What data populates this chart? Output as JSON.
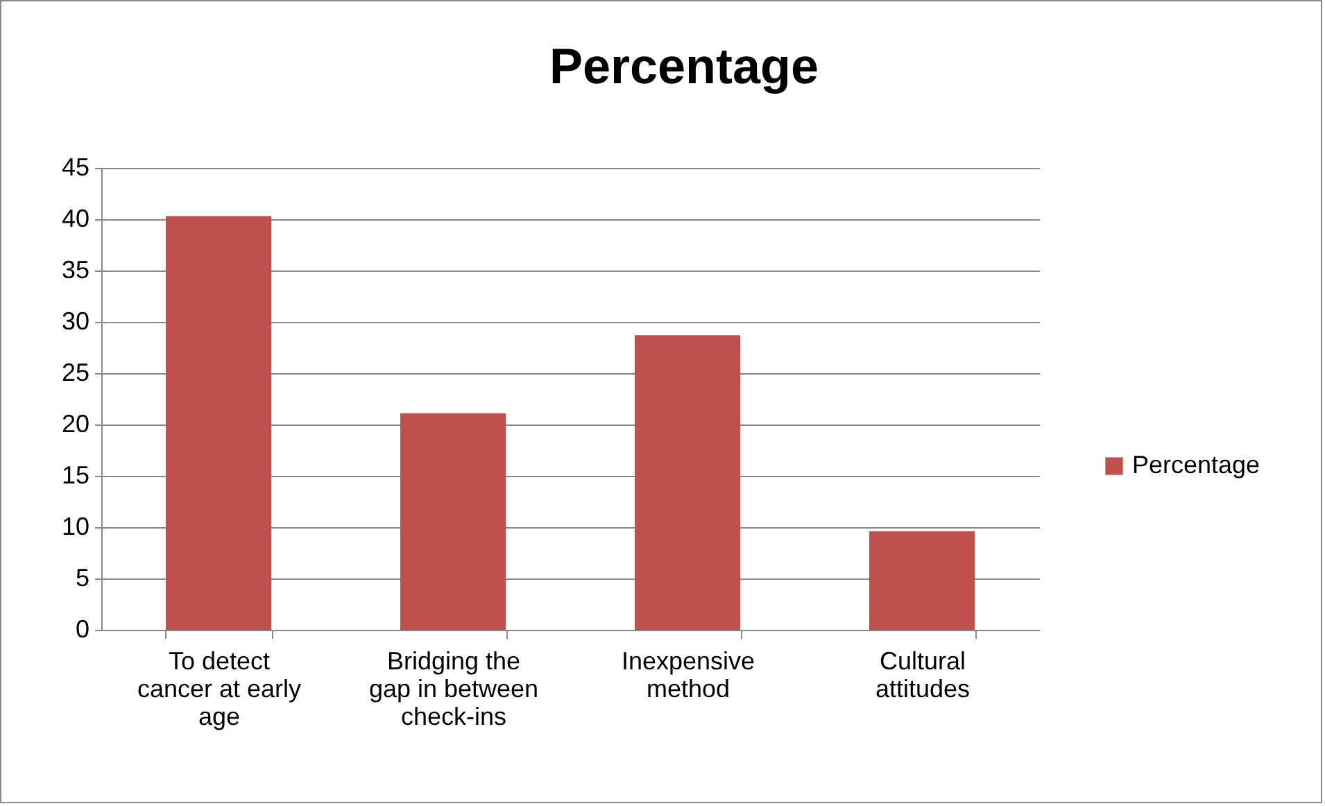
{
  "chart_data": {
    "type": "bar",
    "title": "Percentage",
    "categories": [
      "To detect cancer at early age",
      "Bridging the gap in between check-ins",
      "Inexpensive method",
      "Cultural attitudes"
    ],
    "series": [
      {
        "name": "Percentage",
        "color": "#c0504d",
        "values": [
          40.3,
          21.1,
          28.7,
          9.6
        ]
      }
    ],
    "ylim": [
      0,
      45
    ],
    "yticks": [
      0,
      5,
      10,
      15,
      20,
      25,
      30,
      35,
      40,
      45
    ],
    "grid": "y",
    "legend": "right"
  }
}
